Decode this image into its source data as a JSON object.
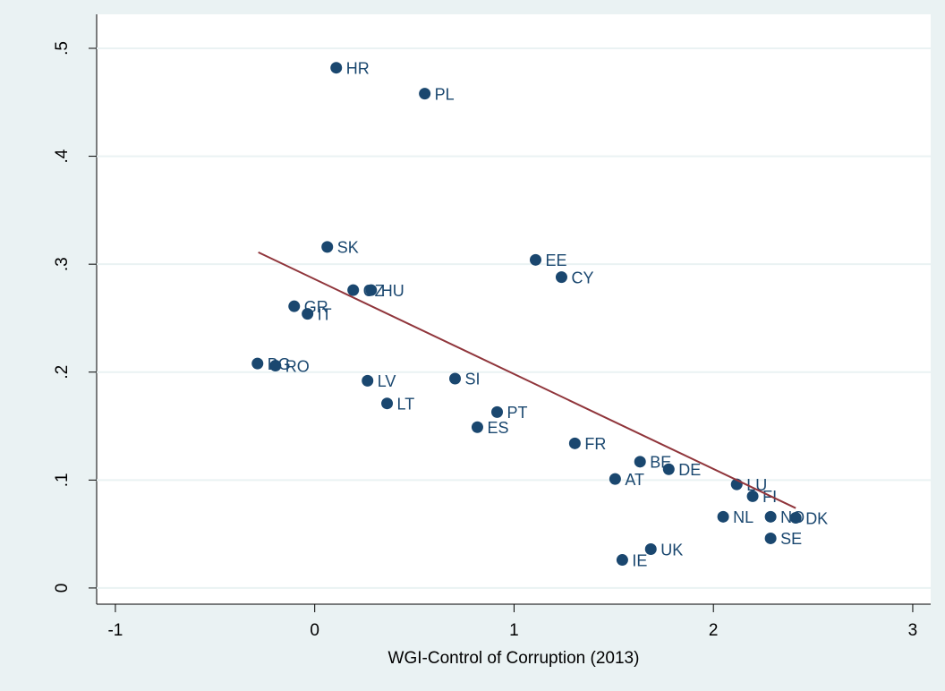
{
  "chart_data": {
    "type": "scatter",
    "x_label": "WGI-Control of Corruption (2013)",
    "labels": [
      "HR",
      "PL",
      "SK",
      "EE",
      "CY",
      "CZ",
      "HU",
      "GR",
      "IT",
      "BG",
      "RO",
      "LV",
      "SI",
      "LT",
      "PT",
      "ES",
      "FR",
      "BE",
      "DE",
      "AT",
      "LU",
      "FI",
      "NL",
      "NO",
      "DK",
      "SE",
      "UK",
      "IE"
    ],
    "x": [
      0.108,
      0.552,
      0.063,
      1.108,
      1.238,
      0.193,
      0.283,
      -0.103,
      -0.036,
      -0.287,
      -0.197,
      0.265,
      0.704,
      0.363,
      0.915,
      0.816,
      1.305,
      1.632,
      1.776,
      1.507,
      2.117,
      2.197,
      2.049,
      2.287,
      2.413,
      2.287,
      1.686,
      1.543
    ],
    "values": [
      0.482,
      0.458,
      0.316,
      0.304,
      0.288,
      0.276,
      0.276,
      0.261,
      0.254,
      0.208,
      0.206,
      0.192,
      0.194,
      0.171,
      0.163,
      0.149,
      0.134,
      0.117,
      0.11,
      0.101,
      0.096,
      0.085,
      0.066,
      0.066,
      0.065,
      0.046,
      0.036,
      0.026
    ],
    "color": "#1a476f",
    "fit": {
      "x": [
        -0.283,
        2.413
      ],
      "values": [
        0.311,
        0.074
      ],
      "color": "#90353b"
    },
    "xlim": [
      -1.094,
      3.09
    ],
    "ylim": [
      -0.015,
      0.5315
    ],
    "xticks": [
      -1,
      0,
      1,
      2,
      3
    ],
    "yticks": [
      0,
      {
        "value": 0.1,
        "label": ".1"
      },
      {
        "value": 0.2,
        "label": ".2"
      },
      {
        "value": 0.3,
        "label": ".3"
      },
      {
        "value": 0.4,
        "label": ".4"
      },
      {
        "value": 0.5,
        "label": ".5"
      }
    ],
    "grid": true
  }
}
